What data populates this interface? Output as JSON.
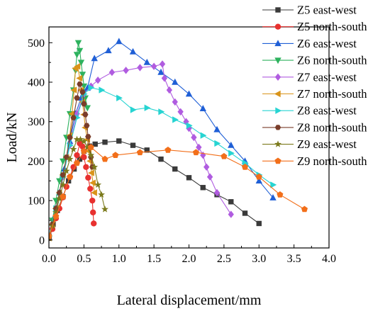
{
  "chart_data": {
    "type": "line",
    "title": "",
    "xlabel": "Lateral displacement/mm",
    "ylabel": "Load/kN",
    "xlim": [
      0,
      4.0
    ],
    "ylim": [
      -20,
      540
    ],
    "xticks": [
      "0.0",
      "0.5",
      "1.0",
      "1.5",
      "2.0",
      "2.5",
      "3.0",
      "3.5",
      "4.0"
    ],
    "yticks": [
      "0",
      "100",
      "200",
      "300",
      "400",
      "500"
    ],
    "grid": false,
    "legend_position": "right",
    "series": [
      {
        "name": "Z5 east-west",
        "color": "#3a3a3a",
        "marker": "square",
        "points": [
          [
            0.0,
            10
          ],
          [
            0.06,
            40
          ],
          [
            0.12,
            75
          ],
          [
            0.2,
            110
          ],
          [
            0.28,
            150
          ],
          [
            0.36,
            180
          ],
          [
            0.44,
            205
          ],
          [
            0.5,
            225
          ],
          [
            0.58,
            238
          ],
          [
            0.66,
            243
          ],
          [
            0.8,
            248
          ],
          [
            1.0,
            251
          ],
          [
            1.2,
            240
          ],
          [
            1.4,
            228
          ],
          [
            1.6,
            205
          ],
          [
            1.8,
            180
          ],
          [
            2.0,
            158
          ],
          [
            2.2,
            133
          ],
          [
            2.4,
            115
          ],
          [
            2.6,
            97
          ],
          [
            2.8,
            68
          ],
          [
            3.0,
            42
          ]
        ]
      },
      {
        "name": "Z5 north-south",
        "color": "#e8312f",
        "marker": "circle",
        "points": [
          [
            0.0,
            5
          ],
          [
            0.05,
            28
          ],
          [
            0.1,
            55
          ],
          [
            0.15,
            80
          ],
          [
            0.2,
            108
          ],
          [
            0.25,
            135
          ],
          [
            0.3,
            160
          ],
          [
            0.35,
            185
          ],
          [
            0.4,
            215
          ],
          [
            0.44,
            245
          ],
          [
            0.48,
            237
          ],
          [
            0.5,
            210
          ],
          [
            0.53,
            185
          ],
          [
            0.56,
            158
          ],
          [
            0.59,
            130
          ],
          [
            0.62,
            100
          ],
          [
            0.63,
            70
          ],
          [
            0.64,
            42
          ]
        ]
      },
      {
        "name": "Z6 east-west",
        "color": "#1f5fd6",
        "marker": "triangle",
        "points": [
          [
            0.0,
            8
          ],
          [
            0.08,
            60
          ],
          [
            0.15,
            120
          ],
          [
            0.22,
            180
          ],
          [
            0.3,
            250
          ],
          [
            0.38,
            320
          ],
          [
            0.46,
            360
          ],
          [
            0.55,
            385
          ],
          [
            0.65,
            460
          ],
          [
            0.85,
            480
          ],
          [
            1.0,
            503
          ],
          [
            1.2,
            477
          ],
          [
            1.4,
            450
          ],
          [
            1.6,
            425
          ],
          [
            1.8,
            400
          ],
          [
            2.0,
            370
          ],
          [
            2.2,
            333
          ],
          [
            2.4,
            280
          ],
          [
            2.6,
            240
          ],
          [
            2.8,
            200
          ],
          [
            3.0,
            150
          ],
          [
            3.2,
            107
          ]
        ]
      },
      {
        "name": "Z6 north-south",
        "color": "#2db25e",
        "marker": "triangle-down",
        "points": [
          [
            0.0,
            5
          ],
          [
            0.05,
            50
          ],
          [
            0.1,
            100
          ],
          [
            0.15,
            150
          ],
          [
            0.2,
            200
          ],
          [
            0.25,
            260
          ],
          [
            0.3,
            320
          ],
          [
            0.35,
            380
          ],
          [
            0.38,
            430
          ],
          [
            0.4,
            470
          ],
          [
            0.42,
            500
          ],
          [
            0.44,
            480
          ],
          [
            0.46,
            450
          ],
          [
            0.48,
            420
          ],
          [
            0.5,
            390
          ],
          [
            0.52,
            360
          ],
          [
            0.55,
            335
          ]
        ]
      },
      {
        "name": "Z7 east-west",
        "color": "#b05ce0",
        "marker": "diamond",
        "points": [
          [
            0.0,
            10
          ],
          [
            0.1,
            80
          ],
          [
            0.2,
            160
          ],
          [
            0.3,
            240
          ],
          [
            0.4,
            320
          ],
          [
            0.5,
            370
          ],
          [
            0.6,
            390
          ],
          [
            0.7,
            405
          ],
          [
            0.9,
            425
          ],
          [
            1.1,
            430
          ],
          [
            1.3,
            437
          ],
          [
            1.5,
            440
          ],
          [
            1.62,
            446
          ],
          [
            1.65,
            410
          ],
          [
            1.72,
            380
          ],
          [
            1.8,
            350
          ],
          [
            1.88,
            325
          ],
          [
            1.96,
            300
          ],
          [
            2.0,
            283
          ],
          [
            2.07,
            260
          ],
          [
            2.14,
            235
          ],
          [
            2.2,
            215
          ],
          [
            2.25,
            185
          ],
          [
            2.3,
            160
          ],
          [
            2.4,
            120
          ],
          [
            2.6,
            65
          ]
        ]
      },
      {
        "name": "Z7 north-south",
        "color": "#d9941a",
        "marker": "triangle-left",
        "points": [
          [
            0.0,
            5
          ],
          [
            0.05,
            40
          ],
          [
            0.1,
            80
          ],
          [
            0.15,
            120
          ],
          [
            0.2,
            165
          ],
          [
            0.25,
            210
          ],
          [
            0.3,
            265
          ],
          [
            0.33,
            320
          ],
          [
            0.36,
            380
          ],
          [
            0.38,
            435
          ],
          [
            0.41,
            440
          ],
          [
            0.44,
            410
          ],
          [
            0.46,
            380
          ],
          [
            0.48,
            350
          ],
          [
            0.5,
            318
          ],
          [
            0.52,
            285
          ],
          [
            0.55,
            255
          ],
          [
            0.57,
            225
          ],
          [
            0.59,
            200
          ],
          [
            0.61,
            170
          ],
          [
            0.63,
            145
          ],
          [
            0.65,
            120
          ]
        ]
      },
      {
        "name": "Z8 east-west",
        "color": "#27d4d2",
        "marker": "triangle-right",
        "points": [
          [
            0.0,
            10
          ],
          [
            0.1,
            80
          ],
          [
            0.2,
            160
          ],
          [
            0.3,
            240
          ],
          [
            0.4,
            310
          ],
          [
            0.5,
            370
          ],
          [
            0.6,
            386
          ],
          [
            0.75,
            380
          ],
          [
            1.0,
            360
          ],
          [
            1.2,
            330
          ],
          [
            1.4,
            335
          ],
          [
            1.6,
            325
          ],
          [
            1.8,
            305
          ],
          [
            2.0,
            290
          ],
          [
            2.2,
            265
          ],
          [
            2.4,
            245
          ],
          [
            2.6,
            220
          ],
          [
            2.8,
            195
          ],
          [
            3.0,
            165
          ],
          [
            3.2,
            140
          ]
        ]
      },
      {
        "name": "Z8 north-south",
        "color": "#7a3d2a",
        "marker": "hexagon",
        "points": [
          [
            0.0,
            5
          ],
          [
            0.05,
            40
          ],
          [
            0.1,
            80
          ],
          [
            0.15,
            120
          ],
          [
            0.2,
            165
          ],
          [
            0.25,
            210
          ],
          [
            0.3,
            260
          ],
          [
            0.35,
            310
          ],
          [
            0.4,
            360
          ],
          [
            0.44,
            395
          ],
          [
            0.48,
            375
          ],
          [
            0.5,
            345
          ],
          [
            0.52,
            318
          ],
          [
            0.54,
            290
          ],
          [
            0.56,
            262
          ],
          [
            0.58,
            236
          ],
          [
            0.6,
            210
          ],
          [
            0.62,
            185
          ]
        ]
      },
      {
        "name": "Z9 east-west",
        "color": "#7b7a1c",
        "marker": "star",
        "points": [
          [
            0.0,
            5
          ],
          [
            0.05,
            35
          ],
          [
            0.1,
            70
          ],
          [
            0.15,
            105
          ],
          [
            0.2,
            140
          ],
          [
            0.25,
            175
          ],
          [
            0.3,
            205
          ],
          [
            0.35,
            230
          ],
          [
            0.4,
            255
          ],
          [
            0.45,
            255
          ],
          [
            0.5,
            250
          ],
          [
            0.55,
            235
          ],
          [
            0.6,
            215
          ],
          [
            0.65,
            185
          ],
          [
            0.7,
            140
          ],
          [
            0.75,
            115
          ],
          [
            0.8,
            78
          ]
        ]
      },
      {
        "name": "Z9 north-south",
        "color": "#f26f1a",
        "marker": "pentagon",
        "points": [
          [
            0.0,
            10
          ],
          [
            0.1,
            60
          ],
          [
            0.2,
            110
          ],
          [
            0.3,
            160
          ],
          [
            0.4,
            195
          ],
          [
            0.5,
            225
          ],
          [
            0.6,
            235
          ],
          [
            0.8,
            205
          ],
          [
            0.95,
            215
          ],
          [
            1.3,
            222
          ],
          [
            1.7,
            228
          ],
          [
            2.1,
            222
          ],
          [
            2.5,
            212
          ],
          [
            2.8,
            185
          ],
          [
            3.0,
            160
          ],
          [
            3.3,
            115
          ],
          [
            3.65,
            78
          ]
        ]
      }
    ]
  }
}
